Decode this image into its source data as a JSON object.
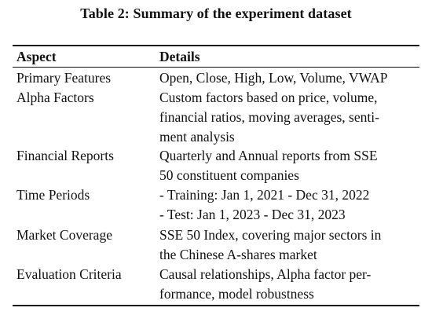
{
  "table": {
    "caption": "Table 2: Summary of the experiment dataset",
    "headers": [
      "Aspect",
      "Details"
    ],
    "rows": [
      {
        "aspect": "Primary Features",
        "details_lines": [
          "Open, Close, High, Low, Volume, VWAP"
        ]
      },
      {
        "aspect": "Alpha Factors",
        "details_lines": [
          "Custom factors based on price, volume,",
          "financial ratios, moving averages, senti-",
          "ment analysis"
        ]
      },
      {
        "aspect": "Financial Reports",
        "details_lines": [
          "Quarterly and Annual reports from SSE",
          "50 constituent companies"
        ]
      },
      {
        "aspect": "Time Periods",
        "details_lines": [
          "- Training: Jan 1, 2021 - Dec 31, 2022",
          "- Test: Jan 1, 2023 - Dec 31, 2023"
        ]
      },
      {
        "aspect": "Market Coverage",
        "details_lines": [
          "SSE 50 Index, covering major sectors in",
          "the Chinese A-shares market"
        ]
      },
      {
        "aspect": "Evaluation Criteria",
        "details_lines": [
          "Causal relationships, Alpha factor per-",
          "formance, model robustness"
        ]
      }
    ]
  }
}
